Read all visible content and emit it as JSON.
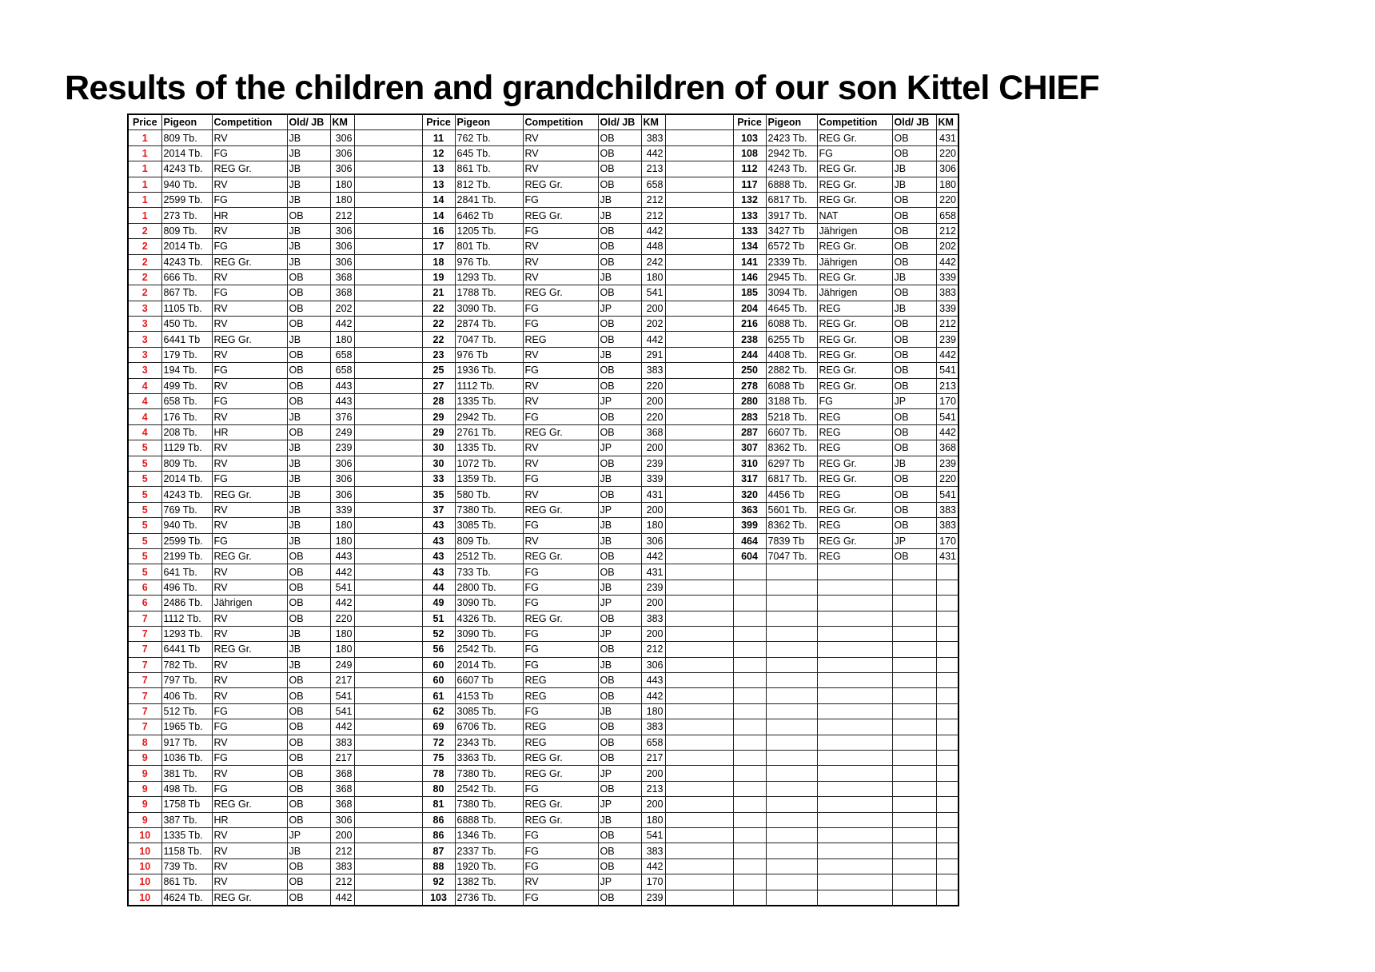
{
  "title": "Results of the children and grandchildren of our son Kittel CHIEF",
  "headers": [
    "Price",
    "Pigeon",
    "Competition",
    "Old/ JB",
    "KM"
  ],
  "colors": {
    "first_block_price": "#e31b1b",
    "text": "#000000"
  },
  "blocks": [
    [
      [
        "1",
        "809  Tb.",
        "RV",
        "JB",
        "306"
      ],
      [
        "1",
        "2014  Tb.",
        "FG",
        "JB",
        "306"
      ],
      [
        "1",
        "4243  Tb.",
        "REG Gr.",
        "JB",
        "306"
      ],
      [
        "1",
        "940  Tb.",
        "RV",
        "JB",
        "180"
      ],
      [
        "1",
        "2599  Tb.",
        "FG",
        "JB",
        "180"
      ],
      [
        "1",
        "273 Tb.",
        "HR",
        "OB",
        "212"
      ],
      [
        "2",
        "809  Tb.",
        "RV",
        "JB",
        "306"
      ],
      [
        "2",
        "2014  Tb.",
        "FG",
        "JB",
        "306"
      ],
      [
        "2",
        "4243  Tb.",
        "REG Gr.",
        "JB",
        "306"
      ],
      [
        "2",
        "666  Tb.",
        "RV",
        "OB",
        "368"
      ],
      [
        "2",
        "867  Tb.",
        "FG",
        "OB",
        "368"
      ],
      [
        "3",
        "1105  Tb.",
        "RV",
        "OB",
        "202"
      ],
      [
        "3",
        "450  Tb.",
        "RV",
        "OB",
        "442"
      ],
      [
        "3",
        "6441  Tb",
        "REG Gr.",
        "JB",
        "180"
      ],
      [
        "3",
        "179  Tb.",
        "RV",
        "OB",
        "658"
      ],
      [
        "3",
        "194  Tb.",
        "FG",
        "OB",
        "658"
      ],
      [
        "4",
        "499  Tb.",
        "RV",
        "OB",
        "443"
      ],
      [
        "4",
        "658  Tb.",
        "FG",
        "OB",
        "443"
      ],
      [
        "4",
        "176 Tb.",
        "RV",
        "JB",
        "376"
      ],
      [
        "4",
        "208 Tb.",
        "HR",
        "OB",
        "249"
      ],
      [
        "5",
        "1129  Tb.",
        "RV",
        "JB",
        "239"
      ],
      [
        "5",
        "809  Tb.",
        "RV",
        "JB",
        "306"
      ],
      [
        "5",
        "2014  Tb.",
        "FG",
        "JB",
        "306"
      ],
      [
        "5",
        "4243  Tb.",
        "REG Gr.",
        "JB",
        "306"
      ],
      [
        "5",
        "769  Tb.",
        "RV",
        "JB",
        "339"
      ],
      [
        "5",
        "940  Tb.",
        "RV",
        "JB",
        "180"
      ],
      [
        "5",
        "2599  Tb.",
        "FG",
        "JB",
        "180"
      ],
      [
        "5",
        "2199  Tb.",
        "REG Gr.",
        "OB",
        "443"
      ],
      [
        "5",
        "641  Tb.",
        "RV",
        "OB",
        "442"
      ],
      [
        "6",
        "496  Tb.",
        "RV",
        "OB",
        "541"
      ],
      [
        "6",
        "2486  Tb.",
        "Jährigen",
        "OB",
        "442"
      ],
      [
        "7",
        "1112  Tb.",
        "RV",
        "OB",
        "220"
      ],
      [
        "7",
        "1293  Tb.",
        "RV",
        "JB",
        "180"
      ],
      [
        "7",
        "6441  Tb",
        "REG Gr.",
        "JB",
        "180"
      ],
      [
        "7",
        "782 Tb.",
        "RV",
        "JB",
        "249"
      ],
      [
        "7",
        "797  Tb.",
        "RV",
        "OB",
        "217"
      ],
      [
        "7",
        "406  Tb.",
        "RV",
        "OB",
        "541"
      ],
      [
        "7",
        "512  Tb.",
        "FG",
        "OB",
        "541"
      ],
      [
        "7",
        "1965  Tb.",
        "FG",
        "OB",
        "442"
      ],
      [
        "8",
        "917 Tb.",
        "RV",
        "OB",
        "383"
      ],
      [
        "9",
        "1036  Tb.",
        "FG",
        "OB",
        "217"
      ],
      [
        "9",
        "381  Tb.",
        "RV",
        "OB",
        "368"
      ],
      [
        "9",
        "498  Tb.",
        "FG",
        "OB",
        "368"
      ],
      [
        "9",
        "1758  Tb",
        "REG Gr.",
        "OB",
        "368"
      ],
      [
        "9",
        "387 Tb.",
        "HR",
        "OB",
        "306"
      ],
      [
        "10",
        "1335  Tb.",
        "RV",
        "JP",
        "200"
      ],
      [
        "10",
        "1158  Tb.",
        "RV",
        "JB",
        "212"
      ],
      [
        "10",
        "739  Tb.",
        "RV",
        "OB",
        "383"
      ],
      [
        "10",
        "861  Tb.",
        "RV",
        "OB",
        "212"
      ],
      [
        "10",
        "4624  Tb.",
        "REG Gr.",
        "OB",
        "442"
      ]
    ],
    [
      [
        "11",
        "762  Tb.",
        "RV",
        "OB",
        "383"
      ],
      [
        "12",
        "645  Tb.",
        "RV",
        "OB",
        "442"
      ],
      [
        "13",
        "861  Tb.",
        "RV",
        "OB",
        "213"
      ],
      [
        "13",
        "812  Tb.",
        "REG Gr.",
        "OB",
        "658"
      ],
      [
        "14",
        "2841  Tb.",
        "FG",
        "JB",
        "212"
      ],
      [
        "14",
        "6462  Tb",
        "REG Gr.",
        "JB",
        "212"
      ],
      [
        "16",
        "1205  Tb.",
        "FG",
        "OB",
        "442"
      ],
      [
        "17",
        "801 Tb.",
        "RV",
        "OB",
        "448"
      ],
      [
        "18",
        "976  Tb.",
        "RV",
        "OB",
        "242"
      ],
      [
        "19",
        "1293  Tb.",
        "RV",
        "JB",
        "180"
      ],
      [
        "21",
        "1788  Tb.",
        "REG Gr.",
        "OB",
        "541"
      ],
      [
        "22",
        "3090  Tb.",
        "FG",
        "JP",
        "200"
      ],
      [
        "22",
        "2874  Tb.",
        "FG",
        "OB",
        "202"
      ],
      [
        "22",
        "7047  Tb.",
        "REG",
        "OB",
        "442"
      ],
      [
        "23",
        "976  Tb",
        "RV",
        "JB",
        "291"
      ],
      [
        "25",
        "1936  Tb.",
        "FG",
        "OB",
        "383"
      ],
      [
        "27",
        "1112  Tb.",
        "RV",
        "OB",
        "220"
      ],
      [
        "28",
        "1335  Tb.",
        "RV",
        "JP",
        "200"
      ],
      [
        "29",
        "2942  Tb.",
        "FG",
        "OB",
        "220"
      ],
      [
        "29",
        "2761  Tb.",
        "REG Gr.",
        "OB",
        "368"
      ],
      [
        "30",
        "1335  Tb.",
        "RV",
        "JP",
        "200"
      ],
      [
        "30",
        "1072  Tb.",
        "RV",
        "OB",
        "239"
      ],
      [
        "33",
        "1359  Tb.",
        "FG",
        "JB",
        "339"
      ],
      [
        "35",
        "580  Tb.",
        "RV",
        "OB",
        "431"
      ],
      [
        "37",
        "7380  Tb.",
        "REG Gr.",
        "JP",
        "200"
      ],
      [
        "43",
        "3085  Tb.",
        "FG",
        "JB",
        "180"
      ],
      [
        "43",
        "809  Tb.",
        "RV",
        "JB",
        "306"
      ],
      [
        "43",
        "2512  Tb.",
        "REG Gr.",
        "OB",
        "442"
      ],
      [
        "43",
        "733  Tb.",
        "FG",
        "OB",
        "431"
      ],
      [
        "44",
        "2800  Tb.",
        "FG",
        "JB",
        "239"
      ],
      [
        "49",
        "3090  Tb.",
        "FG",
        "JP",
        "200"
      ],
      [
        "51",
        "4326  Tb.",
        "REG Gr.",
        "OB",
        "383"
      ],
      [
        "52",
        "3090  Tb.",
        "FG",
        "JP",
        "200"
      ],
      [
        "56",
        "2542  Tb.",
        "FG",
        "OB",
        "212"
      ],
      [
        "60",
        "2014  Tb.",
        "FG",
        "JB",
        "306"
      ],
      [
        "60",
        "6607  Tb",
        "REG",
        "OB",
        "443"
      ],
      [
        "61",
        "4153  Tb",
        "REG",
        "OB",
        "442"
      ],
      [
        "62",
        "3085  Tb.",
        "FG",
        "JB",
        "180"
      ],
      [
        "69",
        "6706  Tb.",
        "REG",
        "OB",
        "383"
      ],
      [
        "72",
        "2343  Tb.",
        "REG",
        "OB",
        "658"
      ],
      [
        "75",
        "3363  Tb.",
        "REG Gr.",
        "OB",
        "217"
      ],
      [
        "78",
        "7380  Tb.",
        "REG Gr.",
        "JP",
        "200"
      ],
      [
        "80",
        "2542  Tb.",
        "FG",
        "OB",
        "213"
      ],
      [
        "81",
        "7380  Tb.",
        "REG Gr.",
        "JP",
        "200"
      ],
      [
        "86",
        "6888  Tb.",
        "REG Gr.",
        "JB",
        "180"
      ],
      [
        "86",
        "1346  Tb.",
        "FG",
        "OB",
        "541"
      ],
      [
        "87",
        "2337  Tb.",
        "FG",
        "OB",
        "383"
      ],
      [
        "88",
        "1920  Tb.",
        "FG",
        "OB",
        "442"
      ],
      [
        "92",
        "1382  Tb.",
        "RV",
        "JP",
        "170"
      ],
      [
        "103",
        "2736  Tb.",
        "FG",
        "OB",
        "239"
      ]
    ],
    [
      [
        "103",
        "2423  Tb.",
        "REG Gr.",
        "OB",
        "431"
      ],
      [
        "108",
        "2942  Tb.",
        "FG",
        "OB",
        "220"
      ],
      [
        "112",
        "4243  Tb.",
        "REG Gr.",
        "JB",
        "306"
      ],
      [
        "117",
        "6888  Tb.",
        "REG Gr.",
        "JB",
        "180"
      ],
      [
        "132",
        "6817  Tb.",
        "REG Gr.",
        "OB",
        "220"
      ],
      [
        "133",
        "3917  Tb.",
        "NAT",
        "OB",
        "658"
      ],
      [
        "133",
        "3427  Tb",
        "Jährigen",
        "OB",
        "212"
      ],
      [
        "134",
        "6572  Tb",
        "REG Gr.",
        "OB",
        "202"
      ],
      [
        "141",
        "2339  Tb.",
        "Jährigen",
        "OB",
        "442"
      ],
      [
        "146",
        "2945  Tb.",
        "REG Gr.",
        "JB",
        "339"
      ],
      [
        "185",
        "3094  Tb.",
        "Jährigen",
        "OB",
        "383"
      ],
      [
        "204",
        "4645  Tb.",
        "REG",
        "JB",
        "339"
      ],
      [
        "216",
        "6088  Tb.",
        "REG Gr.",
        "OB",
        "212"
      ],
      [
        "238",
        "6255  Tb",
        "REG Gr.",
        "OB",
        "239"
      ],
      [
        "244",
        "4408  Tb.",
        "REG Gr.",
        "OB",
        "442"
      ],
      [
        "250",
        "2882  Tb.",
        "REG Gr.",
        "OB",
        "541"
      ],
      [
        "278",
        "6088  Tb",
        "REG Gr.",
        "OB",
        "213"
      ],
      [
        "280",
        "3188  Tb.",
        "FG",
        "JP",
        "170"
      ],
      [
        "283",
        "5218  Tb.",
        "REG",
        "OB",
        "541"
      ],
      [
        "287",
        "6607  Tb.",
        "REG",
        "OB",
        "442"
      ],
      [
        "307",
        "8362  Tb.",
        "REG",
        "OB",
        "368"
      ],
      [
        "310",
        "6297  Tb",
        "REG Gr.",
        "JB",
        "239"
      ],
      [
        "317",
        "6817  Tb.",
        "REG Gr.",
        "OB",
        "220"
      ],
      [
        "320",
        "4456  Tb",
        "REG",
        "OB",
        "541"
      ],
      [
        "363",
        "5601  Tb.",
        "REG Gr.",
        "OB",
        "383"
      ],
      [
        "399",
        "8362  Tb.",
        "REG",
        "OB",
        "383"
      ],
      [
        "464",
        "7839  Tb",
        "REG Gr.",
        "JP",
        "170"
      ],
      [
        "604",
        "7047  Tb.",
        "REG",
        "OB",
        "431"
      ]
    ]
  ]
}
